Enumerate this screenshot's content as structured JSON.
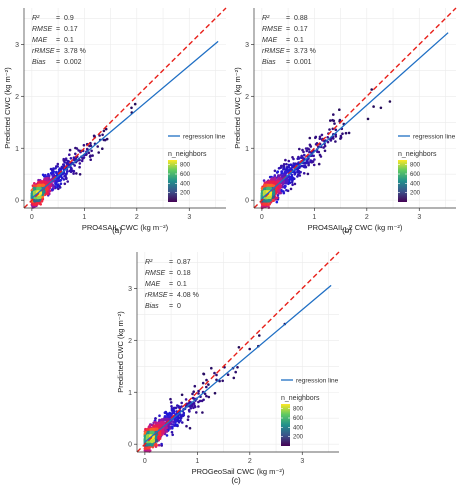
{
  "chart_data": [
    {
      "type": "scatter",
      "panel_label": "(a)",
      "xlabel": "PRO4SAIL CWC (kg m⁻²)",
      "ylabel": "Predicted CWC (kg m⁻²)",
      "xlim": [
        -0.15,
        3.7
      ],
      "ylim": [
        -0.15,
        3.7
      ],
      "x_ticks": [
        "0",
        "1",
        "2",
        "3"
      ],
      "y_ticks": [
        "0",
        "1",
        "2",
        "3"
      ],
      "stats": [
        {
          "name": "R²",
          "value": "0.9"
        },
        {
          "name": "RMSE",
          "value": "0.17"
        },
        {
          "name": "MAE",
          "value": "0.1"
        },
        {
          "name": "rRMSE",
          "value": "3.78 %"
        },
        {
          "name": "Bias",
          "value": "0.002"
        }
      ],
      "regression_label": "regression line",
      "regression": {
        "slope": 0.85,
        "intercept": 0.04
      },
      "one_to_one": {
        "slope": 1,
        "intercept": 0
      },
      "colorbar": {
        "title": "n_neighbors",
        "ticks": [
          200,
          400,
          600,
          800
        ],
        "range": [
          0,
          900
        ]
      },
      "n_points": 1300,
      "x_spread": 0.33,
      "noise": 0.13,
      "seed": 11
    },
    {
      "type": "scatter",
      "panel_label": "(b)",
      "xlabel": "PRO4SAIL_2 CWC (kg m⁻²)",
      "ylabel": "Predicted CWC (kg m⁻²)",
      "xlim": [
        -0.15,
        3.7
      ],
      "ylim": [
        -0.15,
        3.7
      ],
      "x_ticks": [
        "0",
        "1",
        "2",
        "3"
      ],
      "y_ticks": [
        "0",
        "1",
        "2",
        "3"
      ],
      "stats": [
        {
          "name": "R²",
          "value": "0.88"
        },
        {
          "name": "RMSE",
          "value": "0.17"
        },
        {
          "name": "MAE",
          "value": "0.1"
        },
        {
          "name": "rRMSE",
          "value": "3.73 %"
        },
        {
          "name": "Bias",
          "value": "0.001"
        }
      ],
      "regression_label": "regression line",
      "regression": {
        "slope": 0.9,
        "intercept": 0.03
      },
      "one_to_one": {
        "slope": 1,
        "intercept": 0
      },
      "colorbar": {
        "title": "n_neighbors",
        "ticks": [
          200,
          400,
          600,
          800
        ],
        "range": [
          0,
          900
        ]
      },
      "n_points": 1300,
      "x_spread": 0.42,
      "noise": 0.15,
      "seed": 23
    },
    {
      "type": "scatter",
      "panel_label": "(c)",
      "xlabel": "PROGeoSail CWC (kg m⁻²)",
      "ylabel": "Predicted CWC (kg m⁻²)",
      "xlim": [
        -0.15,
        3.7
      ],
      "ylim": [
        -0.15,
        3.7
      ],
      "x_ticks": [
        "0",
        "1",
        "2",
        "3"
      ],
      "y_ticks": [
        "0",
        "1",
        "2",
        "3"
      ],
      "stats": [
        {
          "name": "R²",
          "value": "0.87"
        },
        {
          "name": "RMSE",
          "value": "0.18"
        },
        {
          "name": "MAE",
          "value": "0.1"
        },
        {
          "name": "rRMSE",
          "value": "4.08 %"
        },
        {
          "name": "Bias",
          "value": "0"
        }
      ],
      "regression_label": "regression line",
      "regression": {
        "slope": 0.85,
        "intercept": 0.04
      },
      "one_to_one": {
        "slope": 1,
        "intercept": 0
      },
      "colorbar": {
        "title": "n_neighbors",
        "ticks": [
          200,
          400,
          600,
          800
        ],
        "range": [
          0,
          900
        ]
      },
      "n_points": 1100,
      "x_spread": 0.37,
      "noise": 0.15,
      "seed": 37
    }
  ],
  "colors": {
    "one_to_one": "#e8201a",
    "regression": "#1f6fc4",
    "axis": "#333333",
    "grid": "#ebebeb",
    "viridis": [
      "#440154",
      "#3b528b",
      "#21918c",
      "#5ec962",
      "#fde725"
    ],
    "points_low": [
      "#200a4a",
      "#3a0f9a",
      "#1a1ae0"
    ],
    "points_high": [
      "#c81a86",
      "#f01c44",
      "#ff7a1a"
    ]
  }
}
